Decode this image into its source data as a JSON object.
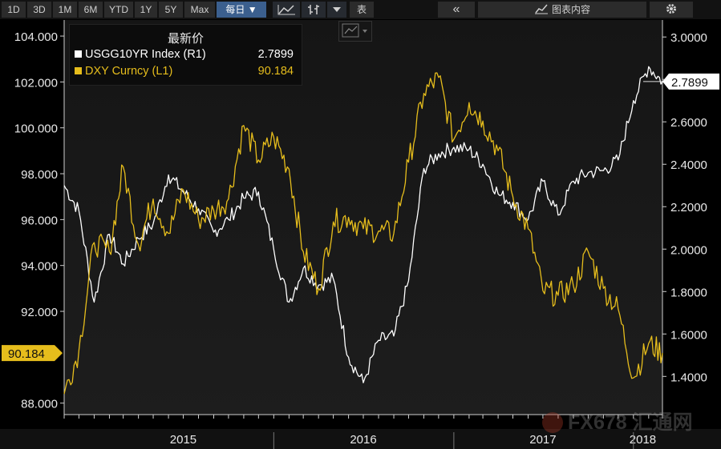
{
  "toolbar": {
    "ranges": [
      "1D",
      "3D",
      "1M",
      "6M",
      "YTD",
      "1Y",
      "5Y",
      "Max"
    ],
    "frequency_label": "每日 ▼",
    "chart_icon": "line-chart-icon",
    "bars_icon": "ohlc-bars-icon",
    "dropdown_icon": "dropdown-triangle-icon",
    "table_label": "表",
    "collapse_label": "«",
    "chart_content_label": "图表内容",
    "settings_icon": "gear-icon"
  },
  "legend": {
    "title": "最新价",
    "rows": [
      {
        "name": "USGG10YR Index (R1)",
        "value": "2.7899",
        "color": "#ffffff"
      },
      {
        "name": "DXY Curncy (L1)",
        "value": "90.184",
        "color": "#e6bd1c"
      }
    ]
  },
  "watermark": {
    "text": "FX678 汇通网"
  },
  "colors": {
    "background": "#000000",
    "usgg": "#ffffff",
    "dxy": "#e6bd1c",
    "axis": "#d8d8d8"
  },
  "chart_data": {
    "type": "line",
    "x_years": [
      "2015",
      "2016",
      "2017",
      "2018"
    ],
    "left_axis": {
      "ticks": [
        "104.000",
        "102.000",
        "100.000",
        "98.000",
        "96.000",
        "94.000",
        "92.000",
        "90.184",
        "88.000"
      ],
      "range": [
        87.5,
        104.7
      ]
    },
    "right_axis": {
      "ticks": [
        "3.0000",
        "2.8000",
        "2.6000",
        "2.4000",
        "2.2000",
        "2.0000",
        "1.8000",
        "1.6000",
        "1.4000"
      ],
      "range": [
        1.22,
        3.08
      ]
    },
    "last_values": {
      "USGG10YR": "2.7899",
      "DXY": "90.184"
    },
    "series": [
      {
        "name": "USGG10YR Index (R1)",
        "axis": "right",
        "x": [
          "2014-11",
          "2014-12",
          "2015-01",
          "2015-02",
          "2015-03",
          "2015-04",
          "2015-05",
          "2015-06",
          "2015-07",
          "2015-08",
          "2015-09",
          "2015-10",
          "2015-11",
          "2015-12",
          "2016-01",
          "2016-02",
          "2016-03",
          "2016-04",
          "2016-05",
          "2016-06",
          "2016-07",
          "2016-08",
          "2016-09",
          "2016-10",
          "2016-11",
          "2016-12",
          "2017-01",
          "2017-02",
          "2017-03",
          "2017-04",
          "2017-05",
          "2017-06",
          "2017-07",
          "2017-08",
          "2017-09",
          "2017-10",
          "2017-11",
          "2017-12",
          "2018-01",
          "2018-02",
          "2018-03"
        ],
        "values": [
          2.3,
          2.18,
          1.75,
          2.07,
          1.93,
          2.05,
          2.12,
          2.35,
          2.27,
          2.19,
          2.08,
          2.14,
          2.24,
          2.27,
          2.0,
          1.75,
          1.91,
          1.83,
          1.86,
          1.49,
          1.37,
          1.57,
          1.59,
          1.85,
          2.38,
          2.45,
          2.48,
          2.47,
          2.4,
          2.26,
          2.22,
          2.14,
          2.32,
          2.16,
          2.32,
          2.36,
          2.37,
          2.42,
          2.7,
          2.86,
          2.79
        ]
      },
      {
        "name": "DXY Curncy (L1)",
        "axis": "left",
        "x": [
          "2014-11",
          "2014-12",
          "2015-01",
          "2015-02",
          "2015-03",
          "2015-04",
          "2015-05",
          "2015-06",
          "2015-07",
          "2015-08",
          "2015-09",
          "2015-10",
          "2015-11",
          "2015-12",
          "2016-01",
          "2016-02",
          "2016-03",
          "2016-04",
          "2016-05",
          "2016-06",
          "2016-07",
          "2016-08",
          "2016-09",
          "2016-10",
          "2016-11",
          "2016-12",
          "2017-01",
          "2017-02",
          "2017-03",
          "2017-04",
          "2017-05",
          "2017-06",
          "2017-07",
          "2017-08",
          "2017-09",
          "2017-10",
          "2017-11",
          "2017-12",
          "2018-01",
          "2018-02",
          "2018-03"
        ],
        "values": [
          88.4,
          90.3,
          95.0,
          94.6,
          98.3,
          94.9,
          96.9,
          95.4,
          97.3,
          96.0,
          96.4,
          96.9,
          100.1,
          98.6,
          99.6,
          98.2,
          94.6,
          93.0,
          95.9,
          96.1,
          95.6,
          95.5,
          95.4,
          98.5,
          101.5,
          102.2,
          99.5,
          101.1,
          100.3,
          99.0,
          97.0,
          95.6,
          92.9,
          92.7,
          93.1,
          94.6,
          93.0,
          92.1,
          89.1,
          90.6,
          90.184
        ]
      }
    ]
  }
}
